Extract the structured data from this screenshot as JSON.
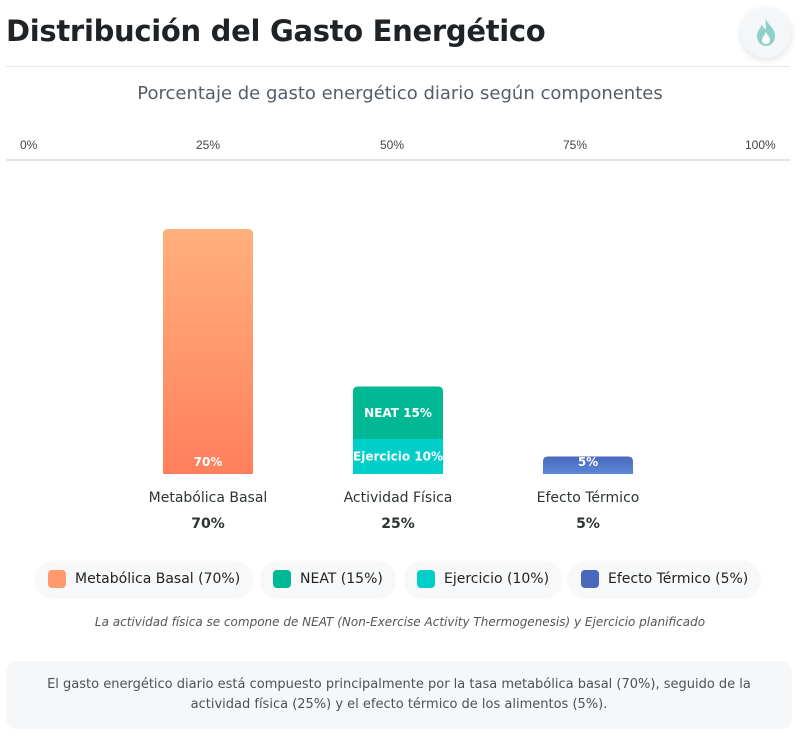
{
  "header": {
    "title": "Distribución del Gasto Energético",
    "icon": "fire-icon"
  },
  "chart_data": {
    "type": "bar",
    "title": "Porcentaje de gasto energético diario según componentes",
    "axis_ticks": [
      "0%",
      "25%",
      "50%",
      "75%",
      "100%"
    ],
    "ylim": [
      0,
      70
    ],
    "categories": [
      {
        "name": "Metabólica Basal",
        "total_label": "70%",
        "total": 70,
        "segments": [
          {
            "name": "Metabólica Basal",
            "value": 70,
            "label": "70%",
            "color_top": "#ffb07c",
            "color_bottom": "#ff7f5c"
          }
        ]
      },
      {
        "name": "Actividad Física",
        "total_label": "25%",
        "total": 25,
        "segments": [
          {
            "name": "Ejercicio",
            "value": 10,
            "label": "Ejercicio 10%",
            "color_top": "#00cec9",
            "color_bottom": "#00cec9"
          },
          {
            "name": "NEAT",
            "value": 15,
            "label": "NEAT 15%",
            "color_top": "#00b894",
            "color_bottom": "#00b894"
          }
        ]
      },
      {
        "name": "Efecto Térmico",
        "total_label": "5%",
        "total": 5,
        "segments": [
          {
            "name": "Efecto Térmico",
            "value": 5,
            "label": "5%",
            "color_top": "#4a69bd",
            "color_bottom": "#5b86d6"
          }
        ]
      }
    ],
    "legend": [
      {
        "label": "Metabólica Basal (70%)",
        "color": "#ff9a6c"
      },
      {
        "label": "NEAT (15%)",
        "color": "#00b894"
      },
      {
        "label": "Ejercicio (10%)",
        "color": "#00cec9"
      },
      {
        "label": "Efecto Térmico (5%)",
        "color": "#4a69bd"
      }
    ]
  },
  "note": "La actividad física se compone de NEAT (Non-Exercise Activity Thermogenesis) y Ejercicio planificado",
  "summary": "El gasto energético diario está compuesto principalmente por la tasa metabólica basal (70%), seguido de la actividad física (25%) y el efecto térmico de los alimentos (5%)."
}
